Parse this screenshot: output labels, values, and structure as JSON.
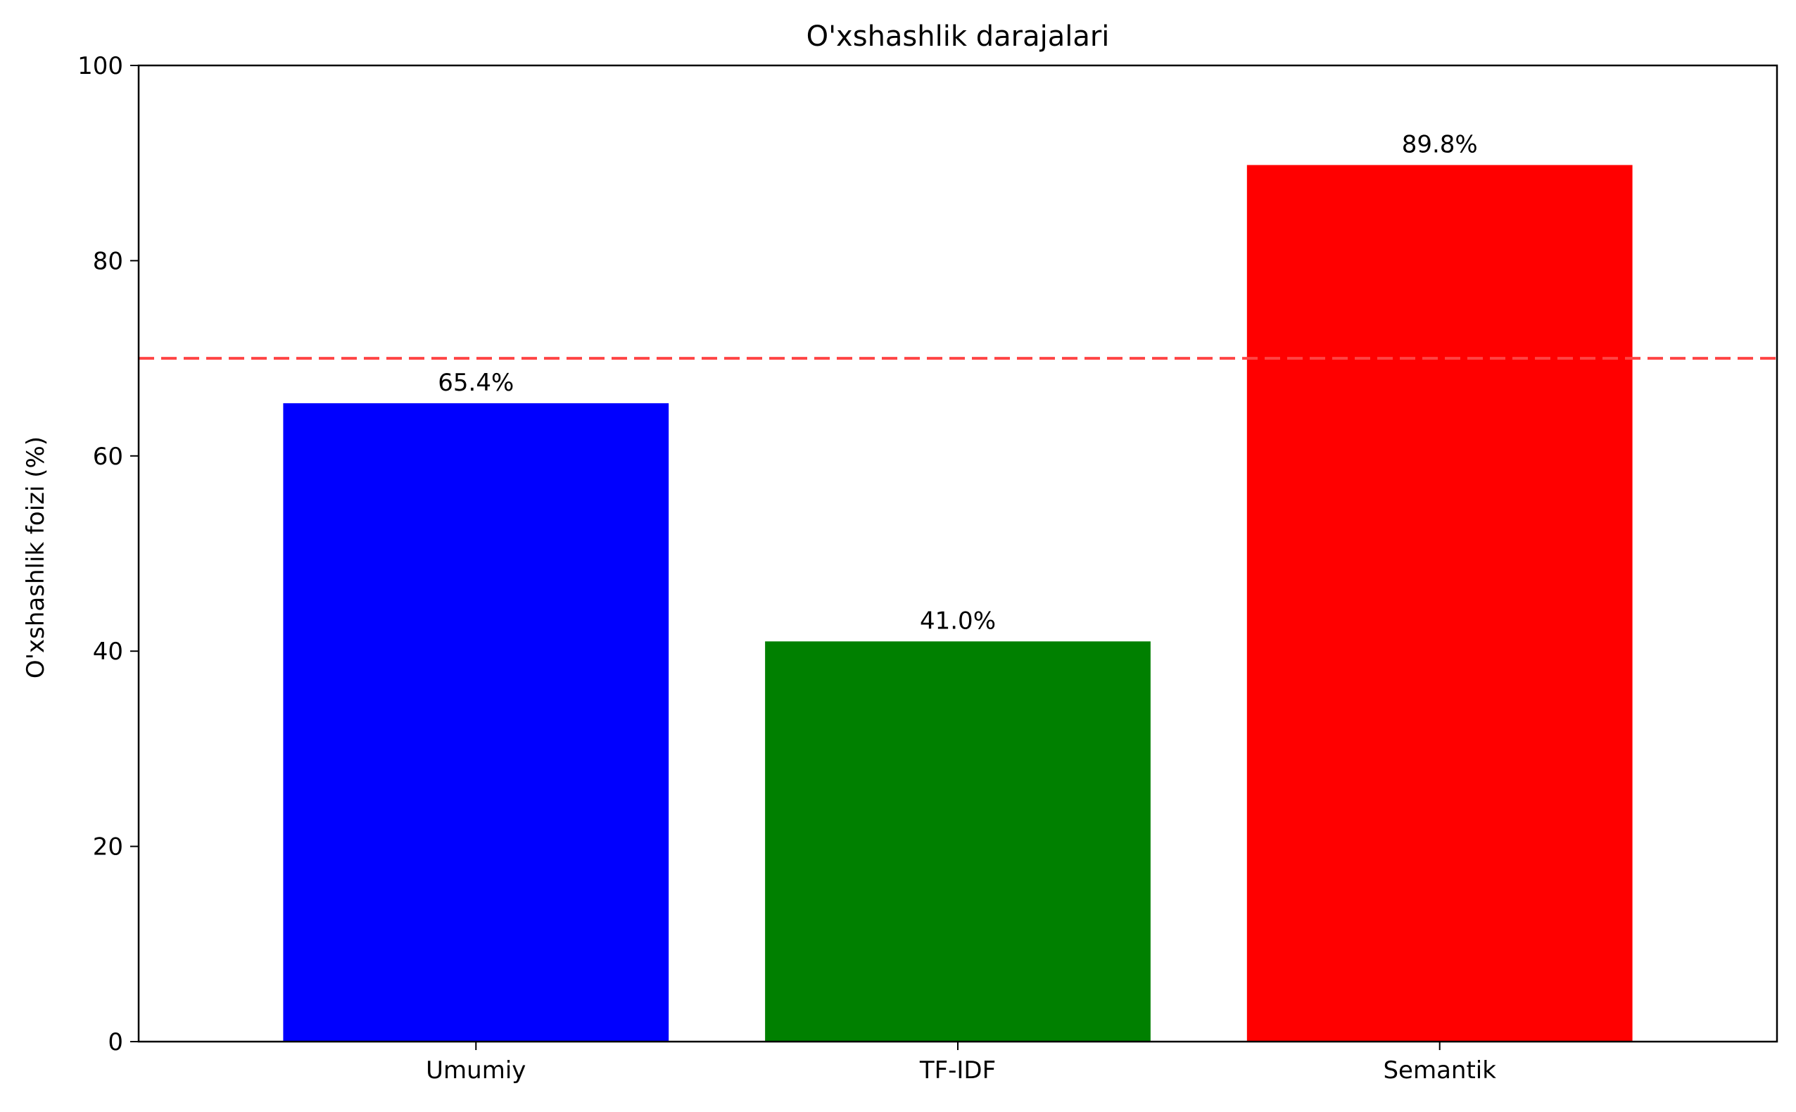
{
  "chart_data": {
    "type": "bar",
    "title": "O'xshashlik darajalari",
    "xlabel": "",
    "ylabel": "O'xshashlik foizi (%)",
    "categories": [
      "Umumiy",
      "TF-IDF",
      "Semantik"
    ],
    "values": [
      65.4,
      41.0,
      89.8
    ],
    "value_labels": [
      "65.4%",
      "41.0%",
      "89.8%"
    ],
    "colors": [
      "#0000ff",
      "#008000",
      "#ff0000"
    ],
    "ylim": [
      0,
      100
    ],
    "yticks": [
      0,
      20,
      40,
      60,
      80,
      100
    ],
    "ytick_labels": [
      "0",
      "20",
      "40",
      "60",
      "80",
      "100"
    ],
    "threshold": {
      "value": 70,
      "color": "#ff4444",
      "style": "dashed"
    },
    "grid": false,
    "legend": "none"
  }
}
